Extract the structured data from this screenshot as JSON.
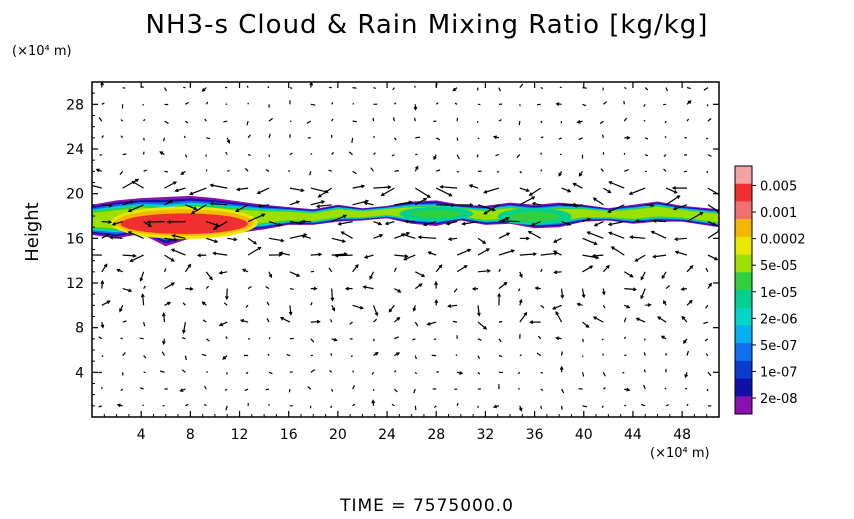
{
  "chart_data": {
    "type": "heatmap",
    "title": "NH3-s Cloud & Rain Mixing Ratio [kg/kg]",
    "ylabel": "Height",
    "xunit": "(×10⁴ m)",
    "yunit": "(×10⁴ m)",
    "xlim": [
      0,
      51
    ],
    "ylim": [
      0,
      30
    ],
    "xticks": [
      4,
      8,
      12,
      16,
      20,
      24,
      28,
      32,
      36,
      40,
      44,
      48
    ],
    "yticks": [
      4,
      8,
      12,
      16,
      20,
      24,
      28
    ],
    "time_label": "TIME = 7575000.0",
    "colorbar": {
      "labels": [
        "0.005",
        "0.001",
        "0.0002",
        "5e-05",
        "1e-05",
        "2e-06",
        "5e-07",
        "1e-07",
        "2e-08"
      ],
      "colors": [
        "#f4a3a3",
        "#f03030",
        "#f07070",
        "#f5b800",
        "#e8e800",
        "#9be000",
        "#2fd040",
        "#00d090",
        "#00d6c8",
        "#00b0f0",
        "#1070f0",
        "#0a3ad0",
        "#1010a8",
        "#8a10b0"
      ]
    },
    "cloud_band": [
      {
        "x": 0,
        "y_bottom": 16.3,
        "y_top": 19.0
      },
      {
        "x": 2,
        "y_bottom": 16.0,
        "y_top": 19.4
      },
      {
        "x": 4,
        "y_bottom": 16.4,
        "y_top": 19.6
      },
      {
        "x": 6,
        "y_bottom": 15.3,
        "y_top": 19.7
      },
      {
        "x": 8,
        "y_bottom": 16.0,
        "y_top": 19.8
      },
      {
        "x": 10,
        "y_bottom": 16.2,
        "y_top": 19.6
      },
      {
        "x": 12,
        "y_bottom": 16.5,
        "y_top": 19.3
      },
      {
        "x": 14,
        "y_bottom": 16.8,
        "y_top": 19.0
      },
      {
        "x": 16,
        "y_bottom": 17.2,
        "y_top": 18.8
      },
      {
        "x": 18,
        "y_bottom": 17.2,
        "y_top": 18.6
      },
      {
        "x": 20,
        "y_bottom": 17.5,
        "y_top": 19.0
      },
      {
        "x": 22,
        "y_bottom": 17.6,
        "y_top": 18.7
      },
      {
        "x": 24,
        "y_bottom": 17.8,
        "y_top": 18.9
      },
      {
        "x": 26,
        "y_bottom": 17.3,
        "y_top": 19.3
      },
      {
        "x": 28,
        "y_bottom": 17.1,
        "y_top": 19.4
      },
      {
        "x": 30,
        "y_bottom": 17.6,
        "y_top": 19.0
      },
      {
        "x": 32,
        "y_bottom": 17.2,
        "y_top": 18.9
      },
      {
        "x": 34,
        "y_bottom": 17.3,
        "y_top": 19.2
      },
      {
        "x": 36,
        "y_bottom": 16.9,
        "y_top": 19.0
      },
      {
        "x": 38,
        "y_bottom": 17.0,
        "y_top": 19.2
      },
      {
        "x": 40,
        "y_bottom": 17.5,
        "y_top": 19.0
      },
      {
        "x": 42,
        "y_bottom": 17.6,
        "y_top": 18.7
      },
      {
        "x": 44,
        "y_bottom": 17.3,
        "y_top": 19.0
      },
      {
        "x": 46,
        "y_bottom": 17.5,
        "y_top": 19.3
      },
      {
        "x": 48,
        "y_bottom": 17.5,
        "y_top": 18.9
      },
      {
        "x": 51,
        "y_bottom": 17.0,
        "y_top": 18.6
      }
    ],
    "core_regions": [
      {
        "x0": 2,
        "x1": 13,
        "y_bottom": 16.3,
        "y_top": 18.5,
        "level": "0.001"
      },
      {
        "x0": 25,
        "x1": 31,
        "y_bottom": 17.6,
        "y_top": 18.8,
        "level": "1e-05"
      },
      {
        "x0": 33,
        "x1": 39,
        "y_bottom": 17.2,
        "y_top": 18.7,
        "level": "1e-05"
      }
    ]
  }
}
